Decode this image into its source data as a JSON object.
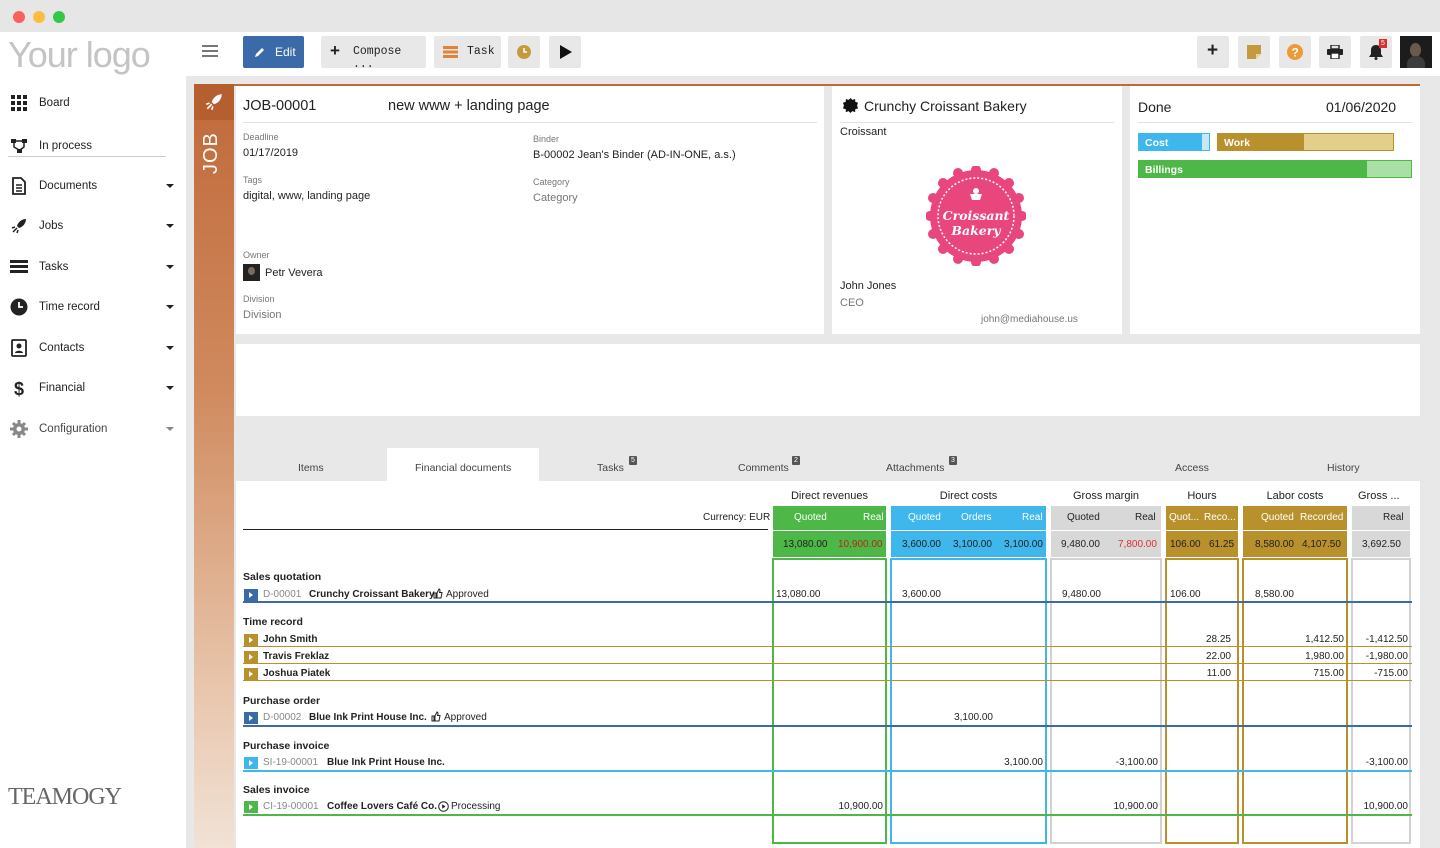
{
  "window": {
    "dots": [
      "#fc605c",
      "#fdbc40",
      "#34c84a"
    ]
  },
  "logo": "Your logo",
  "sidebar": {
    "items": [
      {
        "label": "Board",
        "icon": "grid-icon",
        "caret": false
      },
      {
        "label": "In process",
        "icon": "flow-icon",
        "caret": false
      },
      {
        "label": "Documents",
        "icon": "document-icon",
        "caret": true
      },
      {
        "label": "Jobs",
        "icon": "rocket-icon",
        "caret": true
      },
      {
        "label": "Tasks",
        "icon": "tasks-icon",
        "caret": true
      },
      {
        "label": "Time record",
        "icon": "clock-icon",
        "caret": true
      },
      {
        "label": "Contacts",
        "icon": "contacts-icon",
        "caret": true
      },
      {
        "label": "Financial",
        "icon": "dollar-icon",
        "caret": true
      },
      {
        "label": "Configuration",
        "icon": "gear-icon",
        "caret": true
      }
    ],
    "footer_logo": "TEAMOGY"
  },
  "toolbar": {
    "edit": "Edit",
    "compose": "Compose ...",
    "task": "Task",
    "notifications_count": "5"
  },
  "job": {
    "strip_label": "JOB",
    "number": "JOB-00001",
    "name": "new www + landing page",
    "deadline_label": "Deadline",
    "deadline": "01/17/2019",
    "binder_label": "Binder",
    "binder": "B-00002 Jean's Binder (AD-IN-ONE, a.s.)",
    "tags_label": "Tags",
    "tags": "digital, www, landing page",
    "category_label": "Category",
    "category": "Category",
    "owner_label": "Owner",
    "owner": "Petr Vevera",
    "division_label": "Division",
    "division": "Division"
  },
  "client": {
    "name": "Crunchy Croissant Bakery",
    "short": "Croissant",
    "logo_line1": "Croissant",
    "logo_line2": "Bakery",
    "contact": "John Jones",
    "role": "CEO",
    "email": "john@mediahouse.us"
  },
  "status": {
    "state": "Done",
    "date": "01/06/2020",
    "cost_label": "Cost",
    "cost_fill": 0.9,
    "work_label": "Work",
    "work_fill": 0.49,
    "billings_label": "Billings",
    "billings_fill": 0.84
  },
  "tabs": [
    {
      "label": "Items"
    },
    {
      "label": "Financial documents",
      "active": true
    },
    {
      "label": "Tasks",
      "badge": "5"
    },
    {
      "label": "Comments",
      "badge": "2"
    },
    {
      "label": "Attachments",
      "badge": "3"
    },
    {
      "label": "Access"
    },
    {
      "label": "History"
    }
  ],
  "financial": {
    "currency": "Currency: EUR",
    "groups": [
      "Direct revenues",
      "Direct costs",
      "Gross margin",
      "Hours",
      "Labor costs",
      "Gross ..."
    ],
    "subheads": {
      "dr": [
        "Quoted",
        "Real"
      ],
      "dc": [
        "Quoted",
        "Orders",
        "Real"
      ],
      "gm": [
        "Quoted",
        "Real"
      ],
      "hr": [
        "Quot...",
        "Reco..."
      ],
      "lc": [
        "Quoted",
        "Recorded"
      ],
      "gr": [
        "Real"
      ]
    },
    "totals": {
      "dr": [
        "13,080.00",
        "10,900.00"
      ],
      "dc": [
        "3,600.00",
        "3,100.00",
        "3,100.00"
      ],
      "gm": [
        "9,480.00",
        "7,800.00"
      ],
      "hr": [
        "106.00",
        "61.25"
      ],
      "lc": [
        "8,580.00",
        "4,107.50"
      ],
      "gr": [
        "3,692.50"
      ]
    },
    "sections": [
      {
        "title": "Sales quotation",
        "rows": [
          {
            "doc": "D-00001",
            "name": "Crunchy Croissant Bakery",
            "status": "Approved",
            "dr_q": "13,080.00",
            "dc_q": "3,600.00",
            "gm_q": "9,480.00",
            "hr_q": "106.00",
            "lc_q": "8,580.00"
          }
        ]
      },
      {
        "title": "Time record",
        "rows": [
          {
            "name": "John Smith",
            "hr_r": "28.25",
            "lc_r": "1,412.50",
            "gr": "-1,412.50"
          },
          {
            "name": "Travis Freklaz",
            "hr_r": "22.00",
            "lc_r": "1,980.00",
            "gr": "-1,980.00"
          },
          {
            "name": "Joshua Piatek",
            "hr_r": "11.00",
            "lc_r": "715.00",
            "gr": "-715.00"
          }
        ]
      },
      {
        "title": "Purchase order",
        "rows": [
          {
            "doc": "D-00002",
            "name": "Blue Ink Print House Inc.",
            "status": "Approved",
            "dc_o": "3,100.00"
          }
        ]
      },
      {
        "title": "Purchase invoice",
        "rows": [
          {
            "doc": "SI-19-00001",
            "name": "Blue Ink Print House Inc.",
            "dc_r": "3,100.00",
            "gm_r": "-3,100.00",
            "gr": "-3,100.00"
          }
        ]
      },
      {
        "title": "Sales invoice",
        "rows": [
          {
            "doc": "CI-19-00001",
            "name": "Coffee Lovers Café Co.",
            "status": "Processing",
            "dr_r": "10,900.00",
            "gm_r": "10,900.00",
            "gr": "10,900.00"
          }
        ]
      }
    ]
  },
  "colors": {
    "green": "#4db847",
    "blue": "#3fb6ec",
    "gold": "#b8912c",
    "grey": "#d2d2d2",
    "navy": "#3a6aa8",
    "orange": "#c0693a"
  }
}
